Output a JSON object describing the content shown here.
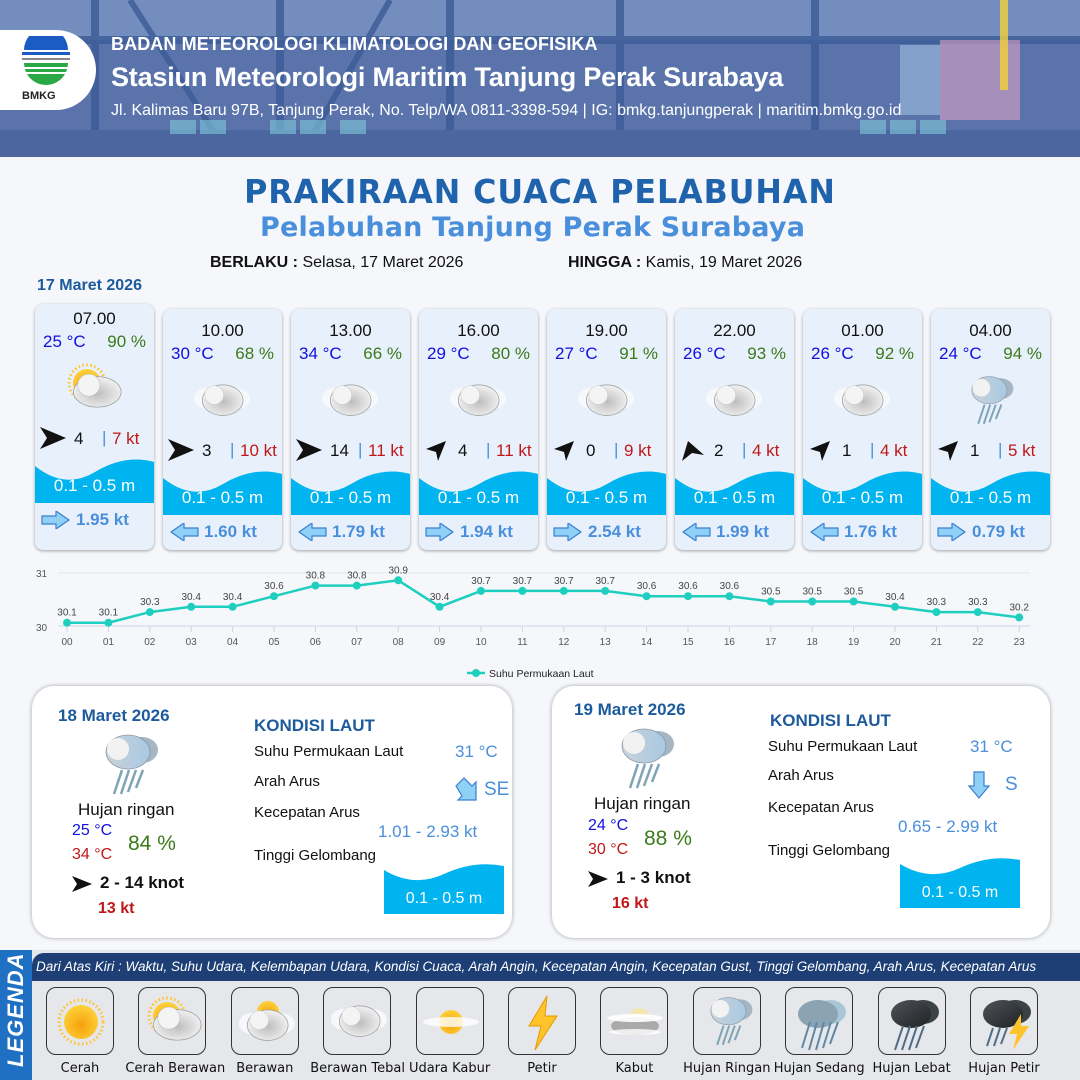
{
  "header": {
    "org": "BADAN METEOROLOGI KLIMATOLOGI DAN GEOFISIKA",
    "station": "Stasiun Meteorologi Maritim Tanjung Perak Surabaya",
    "contact": "Jl. Kalimas Baru 97B, Tanjung Perak, No. Telp/WA 0811-3398-594 | IG: bmkg.tanjungperak | maritim.bmkg.go.id",
    "logo_text": "BMKG"
  },
  "title": {
    "main": "PRAKIRAAN CUACA PELABUHAN",
    "sub": "Pelabuhan Tanjung Perak Surabaya"
  },
  "validity": {
    "from_label": "BERLAKU :",
    "from_value": "Selasa, 17 Maret 2026",
    "to_label": "HINGGA :",
    "to_value": "Kamis, 19 Maret 2026"
  },
  "day1": {
    "date": "17 Maret 2026",
    "slots": [
      {
        "time": "07.00",
        "temp": "25 °C",
        "hum": "90 %",
        "icon": "partly-cloudy-icon",
        "wind_dir": "E",
        "wind": "4",
        "gust": "7 kt",
        "wave": "0.1 - 0.5 m",
        "cur_dir": "right",
        "cur": "1.95 kt"
      },
      {
        "time": "10.00",
        "temp": "30 °C",
        "hum": "68 %",
        "icon": "thick-cloudy-icon",
        "wind_dir": "E",
        "wind": "3",
        "gust": "10 kt",
        "wave": "0.1 - 0.5 m",
        "cur_dir": "left",
        "cur": "1.60 kt"
      },
      {
        "time": "13.00",
        "temp": "34 °C",
        "hum": "66 %",
        "icon": "thick-cloudy-icon",
        "wind_dir": "E",
        "wind": "14",
        "gust": "11 kt",
        "wave": "0.1 - 0.5 m",
        "cur_dir": "left",
        "cur": "1.79 kt"
      },
      {
        "time": "16.00",
        "temp": "29 °C",
        "hum": "80 %",
        "icon": "thick-cloudy-icon",
        "wind_dir": "NE",
        "wind": "4",
        "gust": "11 kt",
        "wave": "0.1 - 0.5 m",
        "cur_dir": "right",
        "cur": "1.94 kt"
      },
      {
        "time": "19.00",
        "temp": "27 °C",
        "hum": "91 %",
        "icon": "thick-cloudy-icon",
        "wind_dir": "NE",
        "wind": "0",
        "gust": "9 kt",
        "wave": "0.1 - 0.5 m",
        "cur_dir": "right",
        "cur": "2.54 kt"
      },
      {
        "time": "22.00",
        "temp": "26 °C",
        "hum": "93 %",
        "icon": "thick-cloudy-icon",
        "wind_dir": "ENE",
        "wind": "2",
        "gust": "4 kt",
        "wave": "0.1 - 0.5 m",
        "cur_dir": "left",
        "cur": "1.99 kt"
      },
      {
        "time": "01.00",
        "temp": "26 °C",
        "hum": "92 %",
        "icon": "thick-cloudy-icon",
        "wind_dir": "NE",
        "wind": "1",
        "gust": "4 kt",
        "wave": "0.1 - 0.5 m",
        "cur_dir": "left",
        "cur": "1.76 kt"
      },
      {
        "time": "04.00",
        "temp": "24 °C",
        "hum": "94 %",
        "icon": "light-rain-icon",
        "wind_dir": "NE",
        "wind": "1",
        "gust": "5 kt",
        "wave": "0.1 - 0.5 m",
        "cur_dir": "right",
        "cur": "0.79 kt"
      }
    ]
  },
  "chart_data": {
    "type": "line",
    "title": "",
    "x": [
      "00",
      "01",
      "02",
      "03",
      "04",
      "05",
      "06",
      "07",
      "08",
      "09",
      "10",
      "11",
      "12",
      "13",
      "14",
      "15",
      "16",
      "17",
      "18",
      "19",
      "20",
      "21",
      "22",
      "23"
    ],
    "series": [
      {
        "name": "Suhu Permukaan Laut",
        "color": "#1ecfbf",
        "values": [
          30.1,
          30.1,
          30.3,
          30.4,
          30.4,
          30.6,
          30.8,
          30.8,
          30.9,
          30.4,
          30.7,
          30.7,
          30.7,
          30.7,
          30.6,
          30.6,
          30.6,
          30.5,
          30.5,
          30.5,
          30.4,
          30.3,
          30.3,
          30.2
        ]
      }
    ],
    "yticks": [
      "30",
      "31"
    ],
    "ylim": [
      30,
      31
    ],
    "xlabel": "",
    "ylabel": "",
    "legend_position": "bottom",
    "grid": true
  },
  "day2": {
    "date": "18 Maret 2026",
    "condition": "Hujan ringan",
    "temp_min": "25 °C",
    "temp_max": "34 °C",
    "humidity": "84 %",
    "wind": "2  - 14 knot",
    "gust": "13 kt",
    "sea_title": "KONDISI LAUT",
    "sst_label": "Suhu Permukaan Laut",
    "sst_value": "31 °C",
    "cur_dir_label": "Arah Arus",
    "cur_dir_value": "SE",
    "cur_speed_label": "Kecepatan Arus",
    "cur_speed_value": "1.01  - 2.93 kt",
    "wave_label": "Tinggi Gelombang",
    "wave_value": "0.1 - 0.5 m"
  },
  "day3": {
    "date": "19 Maret 2026",
    "condition": "Hujan ringan",
    "temp_min": "24 °C",
    "temp_max": "30 °C",
    "humidity": "88 %",
    "wind": "1  - 3 knot",
    "gust": "16 kt",
    "sea_title": "KONDISI LAUT",
    "sst_label": "Suhu Permukaan Laut",
    "sst_value": "31 °C",
    "cur_dir_label": "Arah Arus",
    "cur_dir_value": "S",
    "cur_speed_label": "Kecepatan Arus",
    "cur_speed_value": "0.65 - 2.99 kt",
    "wave_label": "Tinggi Gelombang",
    "wave_value": "0.1 - 0.5 m"
  },
  "legend": {
    "side_label": "LEGENDA",
    "description": "Dari Atas Kiri : Waktu, Suhu Udara, Kelembapan Udara, Kondisi Cuaca, Arah Angin, Kecepatan Angin, Kecepatan Gust, Tinggi Gelombang, Arah Arus, Kecepatan Arus",
    "items": [
      {
        "label": "Cerah",
        "icon": "sunny-icon"
      },
      {
        "label": "Cerah Berawan",
        "icon": "partly-cloudy-icon"
      },
      {
        "label": "Berawan",
        "icon": "cloudy-icon"
      },
      {
        "label": "Berawan Tebal",
        "icon": "thick-cloudy-icon"
      },
      {
        "label": "Udara Kabur",
        "icon": "haze-icon"
      },
      {
        "label": "Petir",
        "icon": "lightning-icon"
      },
      {
        "label": "Kabut",
        "icon": "fog-icon"
      },
      {
        "label": "Hujan Ringan",
        "icon": "light-rain-icon"
      },
      {
        "label": "Hujan Sedang",
        "icon": "moderate-rain-icon"
      },
      {
        "label": "Hujan Lebat",
        "icon": "heavy-rain-icon"
      },
      {
        "label": "Hujan Petir",
        "icon": "thunderstorm-icon"
      }
    ]
  },
  "colors": {
    "title_blue": "#1f63ad",
    "subtitle_blue": "#4a8fdc",
    "temp_blue": "#1010e0",
    "humidity_green": "#3b7a1a",
    "gust_red": "#c01818",
    "wave_cyan": "#00b4f0",
    "chart_teal": "#1ecfbf",
    "legend_bar": "#1d3f75"
  }
}
